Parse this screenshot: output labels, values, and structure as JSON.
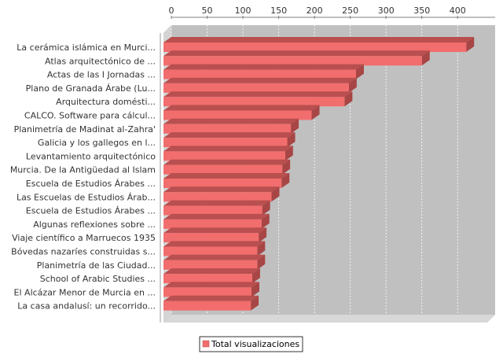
{
  "chart_data": {
    "type": "bar",
    "orientation": "horizontal",
    "title": "",
    "xlabel": "",
    "ylabel": "",
    "xlim": [
      0,
      425
    ],
    "xticks": [
      0,
      50,
      100,
      150,
      200,
      250,
      300,
      350,
      400
    ],
    "axis_position": "top",
    "grid": true,
    "legend_position": "bottom",
    "categories": [
      "La cerámica islámica en Murci...",
      "Atlas arquitectónico de ...",
      "Actas de las I Jornadas ...",
      "Plano de Granada Árabe (Lu...",
      "Arquitectura domésti...",
      "CALCO. Software para cálcul...",
      "Planimetría de Madinat al-Zahra'",
      "Galicia y los gallegos en l...",
      "Levantamiento arquitectónico",
      "Murcia. De la Antigüedad al Islam",
      "Escuela de Estudios Árabes ...",
      "Las Escuelas de Estudios Árab...",
      "Escuela de Estudios Árabes ...",
      "Algunas reflexiones sobre ...",
      "Viaje científico a Marruecos 1935",
      "Bóvedas nazaríes construidas s...",
      "Planimetría de las Ciudad...",
      "School of Arabic Studies ...",
      "El Alcázar Menor de Murcia en ...",
      "La casa andalusí: un recorrido..."
    ],
    "series": [
      {
        "name": "Total visualizaciones",
        "color": "#f26d6d",
        "values": [
          412,
          350,
          258,
          248,
          242,
          196,
          167,
          162,
          159,
          155,
          154,
          140,
          127,
          126,
          122,
          120,
          120,
          113,
          112,
          111
        ]
      }
    ]
  }
}
